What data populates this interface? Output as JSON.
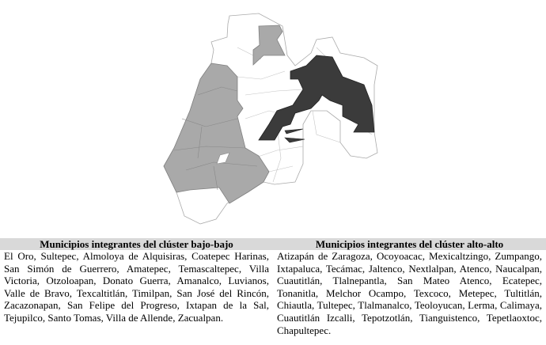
{
  "map": {
    "colors": {
      "low_low_cluster": "#a9a9a9",
      "high_high_cluster": "#3b3b3b",
      "not_significant": "#ffffff",
      "border": "#9a9a9a"
    }
  },
  "table": {
    "columns": [
      {
        "header": "Municipios integrantes del clúster bajo-bajo",
        "text": "El Oro, Sultepec, Almoloya de Alquisiras, Coatepec Harinas, San Simón de Guerrero, Amatepec, Temascaltepec, Villa Victoria, Otzoloapan, Donato Guerra, Amanalco, Luvianos, Valle de Bravo, Texcaltitlán, Timilpan, San José del Rincón, Zacazonapan, San Felipe del Progreso, Ixtapan de la Sal, Tejupilco, Santo Tomas, Villa de Allende, Zacualpan."
      },
      {
        "header": "Municipios integrantes del clúster alto-alto",
        "text": "Atizapán de Zaragoza, Ocoyoacac, Mexicaltzingo, Zumpango, Ixtapaluca, Tecámac, Jaltenco, Nextlalpan, Atenco, Naucalpan, Cuautitlán, Tlalnepantla, San Mateo Atenco, Ecatepec, Tonanitla, Melchor Ocampo, Texcoco, Metepec, Tultitlán, Chiautla, Tultepec, Tlalmanalco, Teoloyucan, Lerma, Calimaya, Cuautitlán Izcalli, Tepotzotlán, Tianguistenco, Tepetlaoxtoc, Chapultepec."
      }
    ]
  }
}
